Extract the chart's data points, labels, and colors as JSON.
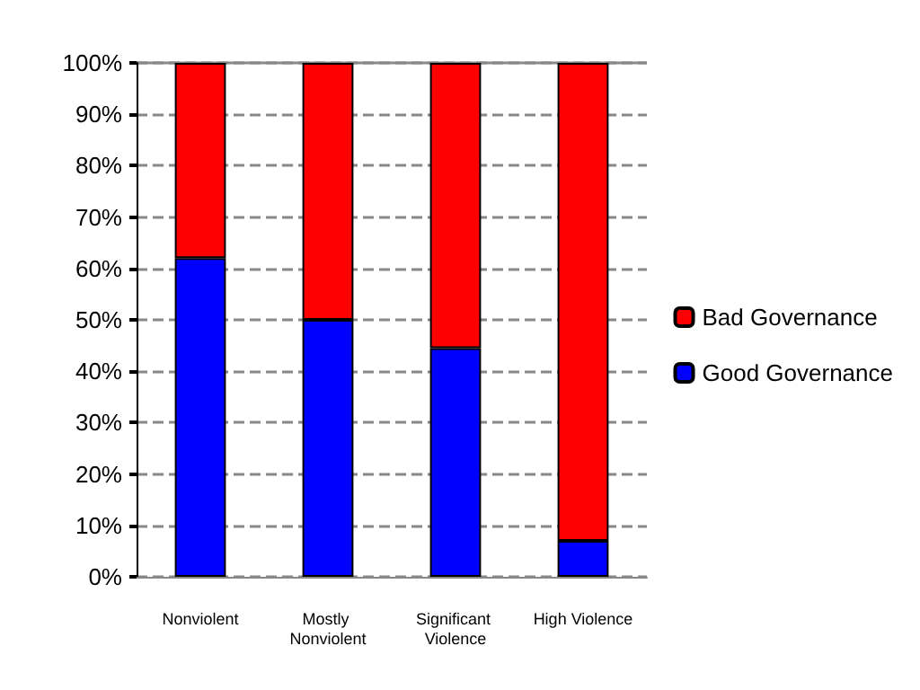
{
  "chart_data": {
    "type": "bar",
    "stacked": true,
    "categories": [
      "Nonviolent",
      "Mostly Nonviolent",
      "Significant Violence",
      "High Violence"
    ],
    "series": [
      {
        "name": "Good Governance",
        "color": "#0000ff",
        "values": [
          62,
          50,
          44.5,
          7
        ]
      },
      {
        "name": "Bad Governance",
        "color": "#ff0000",
        "values": [
          38,
          50,
          55.5,
          93
        ]
      }
    ],
    "ylim": [
      0,
      100
    ],
    "yticks": [
      {
        "value": 0,
        "label": "0%"
      },
      {
        "value": 10,
        "label": "10%"
      },
      {
        "value": 20,
        "label": "20%"
      },
      {
        "value": 30,
        "label": "30%"
      },
      {
        "value": 40,
        "label": "40%"
      },
      {
        "value": 50,
        "label": "50%"
      },
      {
        "value": 60,
        "label": "60%"
      },
      {
        "value": 70,
        "label": "70%"
      },
      {
        "value": 80,
        "label": "80%"
      },
      {
        "value": 90,
        "label": "90%"
      },
      {
        "value": 100,
        "label": "100%"
      }
    ],
    "grid": "y",
    "legend": "right"
  }
}
